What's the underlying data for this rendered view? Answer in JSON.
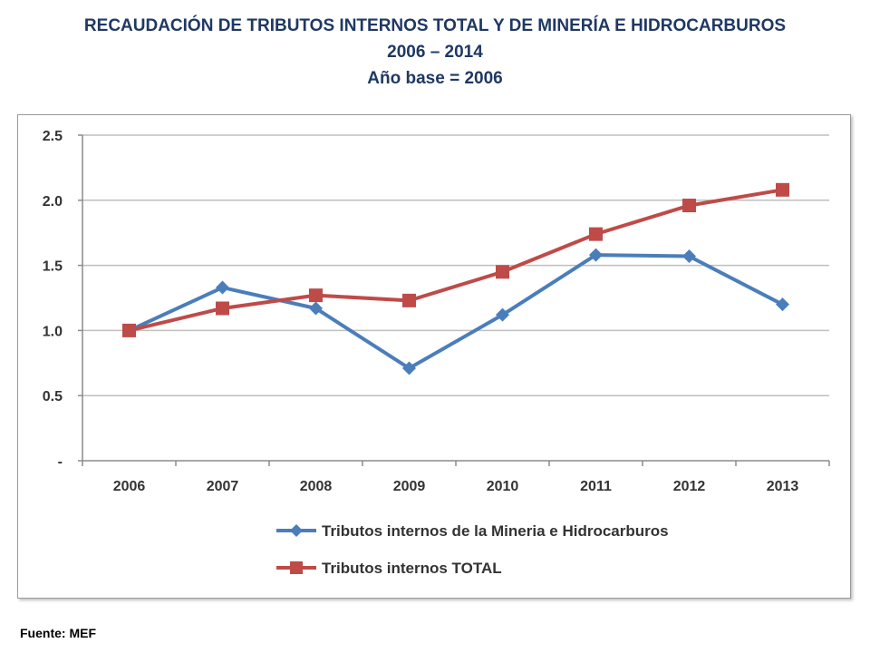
{
  "header": {
    "title": "RECAUDACIÓN DE TRIBUTOS INTERNOS TOTAL Y DE MINERÍA E HIDROCARBUROS",
    "period": "2006 – 2014",
    "base": "Año base = 2006"
  },
  "footer": {
    "source": "Fuente: MEF"
  },
  "chart_data": {
    "type": "line",
    "title": "RECAUDACIÓN DE TRIBUTOS INTERNOS TOTAL Y DE MINERÍA E HIDROCARBUROS",
    "xlabel": "",
    "ylabel": "",
    "categories": [
      "2006",
      "2007",
      "2008",
      "2009",
      "2010",
      "2011",
      "2012",
      "2013"
    ],
    "ylim": [
      0,
      2.5
    ],
    "yticks": [
      0,
      0.5,
      1.0,
      1.5,
      2.0,
      2.5
    ],
    "ytick_labels": [
      "-",
      "0.5",
      "1.0",
      "1.5",
      "2.0",
      "2.5"
    ],
    "grid": true,
    "legend_position": "bottom",
    "series": [
      {
        "name": "Tributos internos de la Mineria e Hidrocarburos",
        "values": [
          1.0,
          1.33,
          1.17,
          0.71,
          1.12,
          1.58,
          1.57,
          1.2
        ],
        "color": "#4a7ebb",
        "marker": "diamond"
      },
      {
        "name": "Tributos internos TOTAL",
        "values": [
          1.0,
          1.17,
          1.27,
          1.23,
          1.45,
          1.74,
          1.96,
          2.08
        ],
        "color": "#be4b48",
        "marker": "square"
      }
    ]
  }
}
